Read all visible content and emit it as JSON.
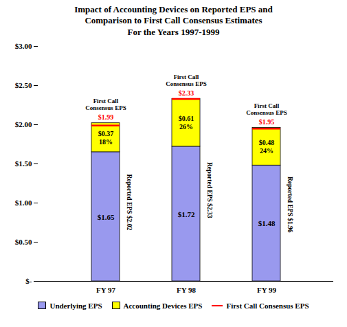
{
  "chart_data": {
    "type": "bar",
    "title": "Impact of Accounting Devices on Reported EPS and\nComparison to First Call Consensus Estimates\nFor the Years 1997-1999",
    "categories": [
      "FY 97",
      "FY 98",
      "FY 99"
    ],
    "stacked": true,
    "data_labels": true,
    "grid": false,
    "legend": "bottom",
    "series": [
      {
        "name": "Underlying EPS",
        "type": "bar",
        "color": "#9999EE",
        "values": [
          1.65,
          1.72,
          1.48
        ],
        "value_labels": [
          "$1.65",
          "$1.72",
          "$1.48"
        ]
      },
      {
        "name": "Accounting Devices EPS",
        "type": "bar",
        "color": "#FFFF00",
        "values": [
          0.37,
          0.61,
          0.48
        ],
        "value_labels": [
          "$0.37",
          "$0.61",
          "$0.48"
        ],
        "pct_labels": [
          "18%",
          "26%",
          "24%"
        ]
      },
      {
        "name": "First Call Consensus EPS",
        "type": "tick",
        "color": "#FF0000",
        "values": [
          1.99,
          2.33,
          1.95
        ],
        "value_labels": [
          "$1.99",
          "$2.33",
          "$1.95"
        ],
        "annotation": "First Call\nConsensus EPS"
      }
    ],
    "reported_eps": [
      2.02,
      2.33,
      1.96
    ],
    "reported_eps_labels": [
      "Reported EPS $2.02",
      "Reported EPS $2.33",
      "Reported EPS $1.96"
    ],
    "ylim": [
      0,
      3.0
    ],
    "yticks": [
      {
        "value": 0,
        "label": "$-"
      },
      {
        "value": 0.5,
        "label": "$0.50"
      },
      {
        "value": 1.0,
        "label": "$1.00"
      },
      {
        "value": 1.5,
        "label": "$1.50"
      },
      {
        "value": 2.0,
        "label": "$2.00"
      },
      {
        "value": 2.5,
        "label": "$2.50"
      },
      {
        "value": 3.0,
        "label": "$3.00"
      }
    ]
  }
}
